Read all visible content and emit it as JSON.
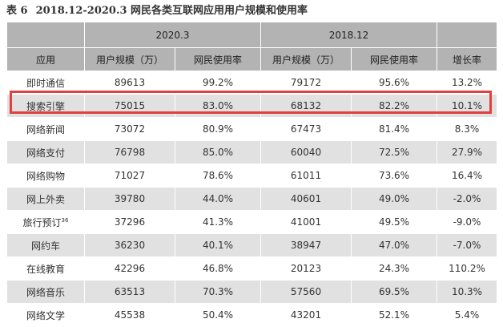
{
  "title": {
    "number": "表 6",
    "text": "2018.12-2020.3 网民各类互联网应用用户规模和使用率"
  },
  "periods": [
    "2020.3",
    "2018.12"
  ],
  "headers": [
    "应用",
    "用户规模（万）",
    "网民使用率",
    "用户规模（万）",
    "网民使用率",
    "增长率"
  ],
  "rows": [
    {
      "app": "即时通信",
      "users_2020": "89613",
      "rate_2020": "99.2%",
      "users_2018": "79172",
      "rate_2018": "95.6%",
      "growth": "13.2%"
    },
    {
      "app": "搜索引擎",
      "users_2020": "75015",
      "rate_2020": "83.0%",
      "users_2018": "68132",
      "rate_2018": "82.2%",
      "growth": "10.1%"
    },
    {
      "app": "网络新闻",
      "users_2020": "73072",
      "rate_2020": "80.9%",
      "users_2018": "67473",
      "rate_2018": "81.4%",
      "growth": "8.3%"
    },
    {
      "app": "网络支付",
      "users_2020": "76798",
      "rate_2020": "85.0%",
      "users_2018": "60040",
      "rate_2018": "72.5%",
      "growth": "27.9%"
    },
    {
      "app": "网络购物",
      "users_2020": "71027",
      "rate_2020": "78.6%",
      "users_2018": "61011",
      "rate_2018": "73.6%",
      "growth": "16.4%"
    },
    {
      "app": "网上外卖",
      "users_2020": "39780",
      "rate_2020": "44.0%",
      "users_2018": "40601",
      "rate_2018": "49.0%",
      "growth": "-2.0%"
    },
    {
      "app": "旅行预订",
      "sup": "36",
      "users_2020": "37296",
      "rate_2020": "41.3%",
      "users_2018": "41001",
      "rate_2018": "49.5%",
      "growth": "-9.0%"
    },
    {
      "app": "网约车",
      "users_2020": "36230",
      "rate_2020": "40.1%",
      "users_2018": "38947",
      "rate_2018": "47.0%",
      "growth": "-7.0%"
    },
    {
      "app": "在线教育",
      "users_2020": "42296",
      "rate_2020": "46.8%",
      "users_2018": "20123",
      "rate_2018": "24.3%",
      "growth": "110.2%"
    },
    {
      "app": "网络音乐",
      "users_2020": "63513",
      "rate_2020": "70.3%",
      "users_2018": "57560",
      "rate_2018": "69.5%",
      "growth": "10.3%"
    },
    {
      "app": "网络文学",
      "users_2020": "45538",
      "rate_2020": "50.4%",
      "users_2018": "43201",
      "rate_2018": "52.1%",
      "growth": "5.4%"
    }
  ],
  "highlight_color": "#e0403f"
}
